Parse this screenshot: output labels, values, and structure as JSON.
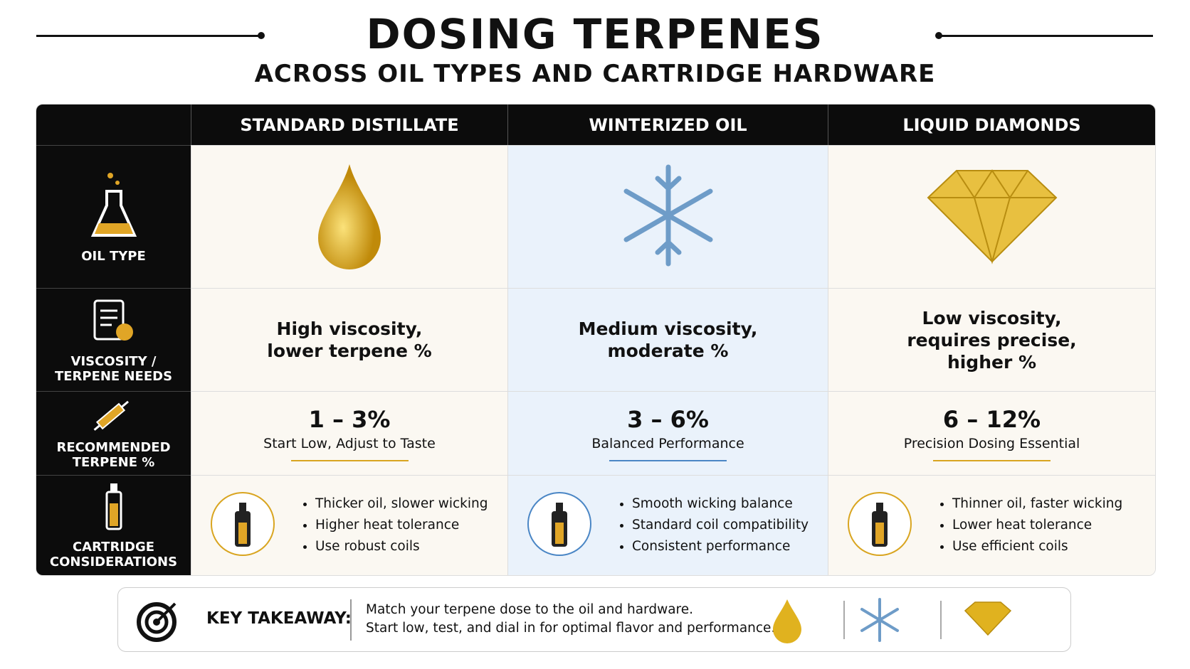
{
  "header": {
    "title": "DOSING TERPENES",
    "subtitle": "ACROSS OIL TYPES AND CARTRIDGE HARDWARE"
  },
  "table": {
    "columns": [
      "STANDARD DISTILLATE",
      "WINTERIZED OIL",
      "LIQUID DIAMONDS"
    ],
    "rows": [
      {
        "label": [
          "OIL TYPE"
        ]
      },
      {
        "label": [
          "VISCOSITY /",
          "TERPENE NEEDS"
        ],
        "cells": [
          [
            "High viscosity,",
            "lower terpene %"
          ],
          [
            "Medium viscosity,",
            "moderate %"
          ],
          [
            "Low viscosity,",
            "requires precise,",
            "higher %"
          ]
        ]
      },
      {
        "label": [
          "RECOMMENDED",
          "TERPENE %"
        ],
        "cells": [
          {
            "value": "1 – 3%",
            "note": "Start Low, Adjust to Taste"
          },
          {
            "value": "3 – 6%",
            "note": "Balanced Performance"
          },
          {
            "value": "6 – 12%",
            "note": "Precision Dosing Essential"
          }
        ]
      },
      {
        "label": [
          "CARTRIDGE",
          "CONSIDERATIONS"
        ],
        "cells": [
          [
            "Thicker oil, slower wicking",
            "Higher heat tolerance",
            "Use robust coils"
          ],
          [
            "Smooth wicking balance",
            "Standard coil compatibility",
            "Consistent performance"
          ],
          [
            "Thinner oil, faster wicking",
            "Lower heat tolerance",
            "Use efficient coils"
          ]
        ]
      }
    ]
  },
  "takeaway": {
    "label": "KEY TAKEAWAY:",
    "lines": [
      "Match your terpene dose to the oil and hardware.",
      "Start low, test, and dial in for optimal flavor and performance."
    ]
  }
}
